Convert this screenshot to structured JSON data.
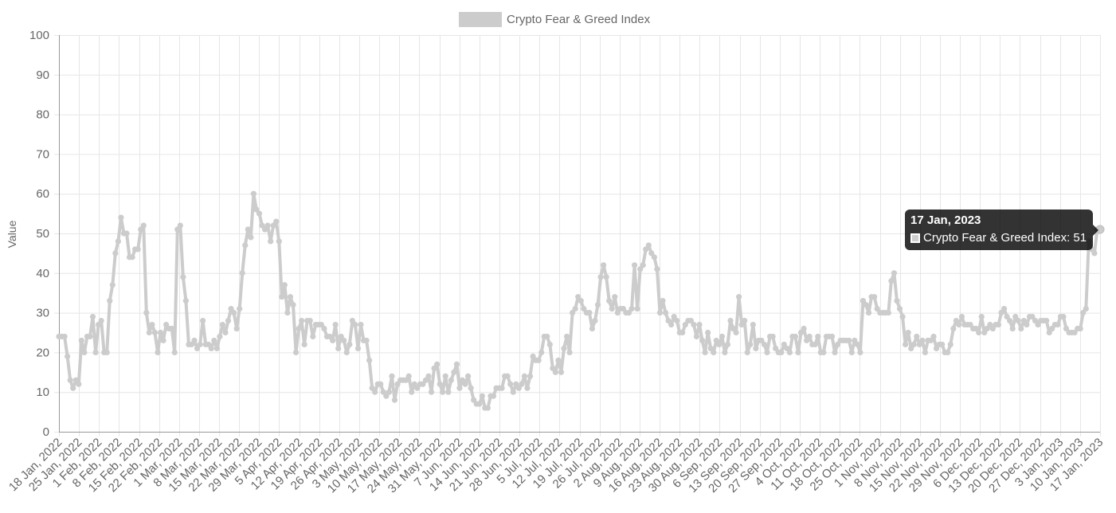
{
  "colors": {
    "series": "#cccccc",
    "grid": "#e6e6e6",
    "axis": "#999999",
    "text": "#666666"
  },
  "chart_data": {
    "type": "line",
    "title": "",
    "ylabel": "Value",
    "xlabel": "",
    "ylim": [
      0,
      100
    ],
    "yticks": [
      0,
      10,
      20,
      30,
      40,
      50,
      60,
      70,
      80,
      90,
      100
    ],
    "grid": true,
    "legend": "top-center",
    "x_start": "18 Jan, 2022",
    "x_end": "17 Jan, 2023",
    "xtick_labels": [
      "18 Jan, 2022",
      "25 Jan, 2022",
      "1 Feb, 2022",
      "8 Feb, 2022",
      "15 Feb, 2022",
      "22 Feb, 2022",
      "1 Mar, 2022",
      "8 Mar, 2022",
      "15 Mar, 2022",
      "22 Mar, 2022",
      "29 Mar, 2022",
      "5 Apr, 2022",
      "12 Apr, 2022",
      "19 Apr, 2022",
      "26 Apr, 2022",
      "3 May, 2022",
      "10 May, 2022",
      "17 May, 2022",
      "24 May, 2022",
      "31 May, 2022",
      "7 Jun, 2022",
      "14 Jun, 2022",
      "21 Jun, 2022",
      "28 Jun, 2022",
      "5 Jul, 2022",
      "12 Jul, 2022",
      "19 Jul, 2022",
      "26 Jul, 2022",
      "2 Aug, 2022",
      "9 Aug, 2022",
      "16 Aug, 2022",
      "23 Aug, 2022",
      "30 Aug, 2022",
      "6 Sep, 2022",
      "13 Sep, 2022",
      "20 Sep, 2022",
      "27 Sep, 2022",
      "4 Oct, 2022",
      "11 Oct, 2022",
      "18 Oct, 2022",
      "25 Oct, 2022",
      "1 Nov, 2022",
      "8 Nov, 2022",
      "15 Nov, 2022",
      "22 Nov, 2022",
      "29 Nov, 2022",
      "6 Dec, 2022",
      "13 Dec, 2022",
      "20 Dec, 2022",
      "27 Dec, 2022",
      "3 Jan, 2023",
      "10 Jan, 2023",
      "17 Jan, 2023"
    ],
    "series": [
      {
        "name": "Crypto Fear & Greed Index",
        "values": [
          24,
          24,
          24,
          19,
          13,
          11,
          13,
          12,
          23,
          20,
          24,
          24,
          29,
          20,
          27,
          28,
          20,
          20,
          33,
          37,
          45,
          48,
          54,
          50,
          50,
          44,
          44,
          46,
          46,
          51,
          52,
          30,
          25,
          27,
          25,
          20,
          25,
          23,
          27,
          26,
          26,
          20,
          51,
          52,
          39,
          33,
          22,
          22,
          23,
          21,
          22,
          28,
          22,
          22,
          21,
          23,
          21,
          24,
          27,
          25,
          28,
          31,
          30,
          26,
          31,
          40,
          47,
          51,
          49,
          60,
          56,
          55,
          52,
          51,
          52,
          48,
          52,
          53,
          48,
          34,
          37,
          30,
          34,
          32,
          20,
          26,
          28,
          22,
          28,
          28,
          24,
          27,
          27,
          27,
          26,
          24,
          24,
          23,
          27,
          21,
          24,
          23,
          20,
          22,
          28,
          27,
          21,
          27,
          23,
          23,
          18,
          11,
          10,
          12,
          12,
          10,
          9,
          10,
          14,
          8,
          12,
          13,
          13,
          13,
          14,
          10,
          12,
          11,
          12,
          12,
          13,
          14,
          10,
          16,
          17,
          12,
          10,
          14,
          10,
          13,
          15,
          17,
          11,
          13,
          12,
          14,
          11,
          8,
          7,
          7,
          9,
          6,
          6,
          9,
          9,
          11,
          11,
          11,
          14,
          14,
          12,
          10,
          12,
          11,
          12,
          14,
          11,
          14,
          19,
          18,
          18,
          20,
          24,
          24,
          22,
          16,
          15,
          18,
          15,
          21,
          24,
          20,
          30,
          31,
          34,
          33,
          31,
          30,
          30,
          26,
          28,
          32,
          39,
          42,
          39,
          33,
          31,
          34,
          30,
          31,
          31,
          30,
          30,
          31,
          42,
          31,
          41,
          42,
          46,
          47,
          45,
          44,
          41,
          30,
          33,
          30,
          28,
          27,
          29,
          28,
          25,
          25,
          27,
          28,
          28,
          27,
          24,
          27,
          23,
          20,
          25,
          21,
          20,
          23,
          22,
          24,
          20,
          22,
          28,
          26,
          25,
          34,
          27,
          28,
          20,
          22,
          27,
          21,
          23,
          23,
          22,
          20,
          24,
          24,
          21,
          20,
          20,
          22,
          21,
          20,
          24,
          24,
          20,
          25,
          26,
          23,
          24,
          22,
          22,
          24,
          20,
          20,
          24,
          24,
          24,
          20,
          22,
          23,
          23,
          23,
          23,
          20,
          23,
          22,
          20,
          33,
          32,
          30,
          34,
          34,
          31,
          30,
          30,
          30,
          30,
          38,
          40,
          33,
          31,
          29,
          22,
          25,
          21,
          22,
          24,
          22,
          23,
          20,
          23,
          23,
          24,
          21,
          22,
          22,
          20,
          20,
          22,
          26,
          28,
          27,
          29,
          27,
          27,
          27,
          26,
          26,
          25,
          29,
          25,
          26,
          27,
          26,
          27,
          27,
          30,
          31,
          29,
          28,
          26,
          29,
          28,
          26,
          28,
          27,
          29,
          29,
          28,
          27,
          28,
          28,
          28,
          25,
          26,
          27,
          27,
          29,
          29,
          26,
          25,
          25,
          25,
          26,
          26,
          30,
          31,
          48,
          46,
          45,
          51,
          51
        ]
      }
    ]
  },
  "tooltip": {
    "title": "17 Jan, 2023",
    "label": "Crypto Fear & Greed Index: 51"
  }
}
